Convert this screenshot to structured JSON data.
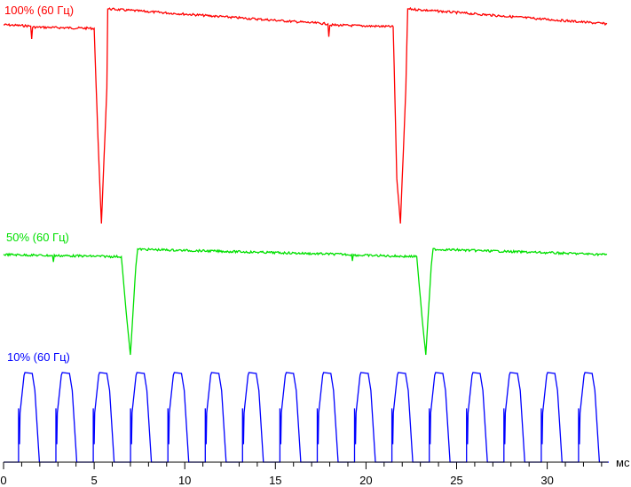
{
  "chart_data": {
    "type": "line",
    "title": "",
    "xlabel": "мс",
    "ylabel": "",
    "xlim": [
      0,
      33.4
    ],
    "x_ticks": [
      0,
      5,
      10,
      15,
      20,
      25,
      30
    ],
    "x_tick_labels": [
      "0",
      "5",
      "10",
      "15",
      "20",
      "25",
      "30"
    ],
    "grid": false,
    "legend": "none",
    "series": [
      {
        "name": "100% (60 Гц)",
        "color": "#ff0000",
        "x": [
          0,
          1.5,
          1.55,
          1.6,
          5.0,
          5.2,
          5.4,
          5.7,
          5.75,
          17.9,
          17.95,
          18.0,
          21.5,
          21.7,
          21.9,
          22.2,
          22.3,
          33.3
        ],
        "y": [
          0.926,
          0.92,
          0.86,
          0.915,
          0.909,
          0.42,
          0.0,
          0.63,
          1.0,
          0.93,
          0.87,
          0.925,
          0.917,
          0.21,
          0.0,
          0.63,
          1.0,
          0.93
        ]
      },
      {
        "name": "50% (60 Гц)",
        "color": "#00e000",
        "x": [
          0,
          2.7,
          2.75,
          2.8,
          6.5,
          6.8,
          7.0,
          7.3,
          7.4,
          19.2,
          19.25,
          19.3,
          22.8,
          23.1,
          23.3,
          23.6,
          23.7,
          33.3
        ],
        "y": [
          0.95,
          0.94,
          0.88,
          0.94,
          0.93,
          0.34,
          0.0,
          0.84,
          1.0,
          0.95,
          0.89,
          0.945,
          0.93,
          0.34,
          0.0,
          0.84,
          1.0,
          0.95
        ]
      },
      {
        "name": "10% (60 Гц)",
        "color": "#0000ff",
        "pulse_start_ms": 0.83,
        "pulse_period_ms": 2.06,
        "pulse_count": 16,
        "pulse_rise_ms": 0.3,
        "pulse_top_ms": 0.45,
        "pulse_fall_ms": 0.4
      }
    ]
  }
}
